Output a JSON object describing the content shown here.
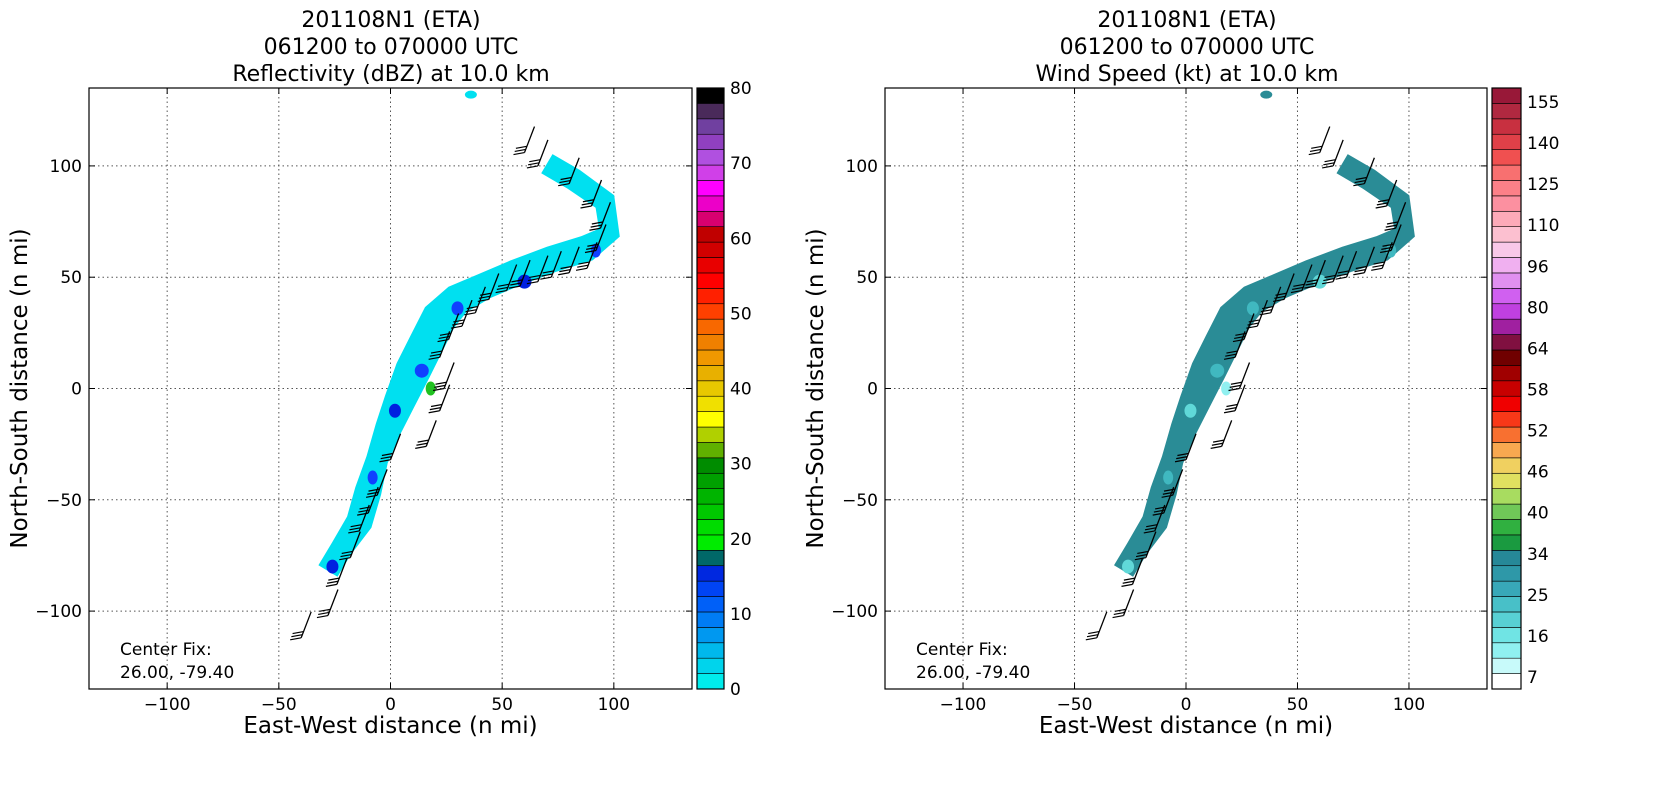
{
  "chart_data": [
    {
      "type": "heatmap",
      "title_lines": [
        "201108N1 (ETA)",
        "061200 to 070000 UTC",
        "Reflectivity (dBZ) at 10.0 km"
      ],
      "xlabel": "East-West distance (n mi)",
      "ylabel": "North-South distance (n mi)",
      "xlim": [
        -135,
        135
      ],
      "ylim": [
        -135,
        135
      ],
      "xticks": [
        -100,
        -50,
        0,
        50,
        100
      ],
      "yticks": [
        -100,
        -50,
        0,
        50,
        100
      ],
      "xtick_labels": [
        "−100",
        "−50",
        "0",
        "50",
        "100"
      ],
      "ytick_labels": [
        "−100",
        "−50",
        "0",
        "50",
        "100"
      ],
      "grid": true,
      "annotation_lines": [
        "Center Fix:",
        "26.00, -79.40"
      ],
      "colorbar": {
        "min": 0,
        "max": 80,
        "tick_values": [
          0,
          10,
          20,
          30,
          40,
          50,
          60,
          70,
          80
        ],
        "tick_labels": [
          "0",
          "10",
          "20",
          "30",
          "40",
          "50",
          "60",
          "70",
          "80"
        ],
        "colors": [
          "#00ecec",
          "#00d4ec",
          "#00b8ec",
          "#0098f0",
          "#007cf4",
          "#0060f8",
          "#0044f4",
          "#0028e0",
          "#006868",
          "#00ec00",
          "#00dc00",
          "#00c800",
          "#00b400",
          "#00a000",
          "#008c00",
          "#60b000",
          "#b0d000",
          "#ffff00",
          "#f0e000",
          "#e8c800",
          "#e8b000",
          "#f09800",
          "#f08000",
          "#f86800",
          "#ff4000",
          "#ff2000",
          "#ff0000",
          "#e80000",
          "#d00000",
          "#c00000",
          "#d80070",
          "#ec00c8",
          "#ff00ff",
          "#d040e8",
          "#b050e0",
          "#9040c0",
          "#7040a0",
          "#4a2a5a",
          "#000000"
        ]
      },
      "field_color": "#00e0f0",
      "accent_colors": [
        "#1040ff",
        "#0020e0",
        "#20c020"
      ]
    },
    {
      "type": "heatmap",
      "title_lines": [
        "201108N1 (ETA)",
        "061200 to 070000 UTC",
        "Wind Speed (kt) at 10.0 km"
      ],
      "xlabel": "East-West distance (n mi)",
      "ylabel": "North-South distance (n mi)",
      "xlim": [
        -135,
        135
      ],
      "ylim": [
        -135,
        135
      ],
      "xticks": [
        -100,
        -50,
        0,
        50,
        100
      ],
      "yticks": [
        -100,
        -50,
        0,
        50,
        100
      ],
      "xtick_labels": [
        "−100",
        "−50",
        "0",
        "50",
        "100"
      ],
      "ytick_labels": [
        "−100",
        "−50",
        "0",
        "50",
        "100"
      ],
      "grid": true,
      "annotation_lines": [
        "Center Fix:",
        "26.00, -79.40"
      ],
      "colorbar": {
        "tick_labels": [
          "7",
          "16",
          "25",
          "34",
          "40",
          "46",
          "52",
          "58",
          "64",
          "80",
          "96",
          "110",
          "125",
          "140",
          "155"
        ],
        "colors": [
          "#ffffff",
          "#c8fafa",
          "#90f0f0",
          "#70e4e4",
          "#58d0d4",
          "#48c0c8",
          "#38a8b8",
          "#2e98a8",
          "#268898",
          "#1a9a40",
          "#30b040",
          "#70c858",
          "#a8dc60",
          "#e0e060",
          "#f0d060",
          "#f8a850",
          "#f87030",
          "#f83818",
          "#f00000",
          "#c80000",
          "#a00000",
          "#700000",
          "#801040",
          "#a020a0",
          "#c040e0",
          "#d060f0",
          "#e090f0",
          "#f0b0f0",
          "#f8c8e8",
          "#fcc0d0",
          "#fcaab8",
          "#fc90a0",
          "#fc8088",
          "#f87070",
          "#f05050",
          "#e04048",
          "#c83040",
          "#b02840",
          "#981838"
        ]
      },
      "field_color": "#2a8c96",
      "accent_colors": [
        "#40b8c0",
        "#60d8d8",
        "#90f0f0"
      ]
    }
  ]
}
